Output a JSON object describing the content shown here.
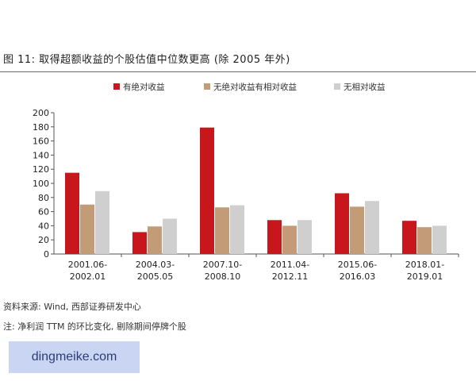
{
  "header": {
    "title": "图 11:  取得超额收益的个股估值中位数更高 (除 2005 年外)"
  },
  "footer": {
    "source": "资料来源: Wind, 西部证券研发中心",
    "note": "注: 净利润 TTM 的环比变化, 剔除期间停牌个股"
  },
  "watermark": {
    "text": "dingmeike.com"
  },
  "chart_data": {
    "type": "bar",
    "title": "",
    "xlabel": "",
    "ylabel": "",
    "ylim": [
      0,
      200
    ],
    "yticks": [
      0,
      20,
      40,
      60,
      80,
      100,
      120,
      140,
      160,
      180,
      200
    ],
    "grid": false,
    "legend_position": "top",
    "categories": [
      [
        "2001.06-",
        "2002.01"
      ],
      [
        "2004.03-",
        "2005.05"
      ],
      [
        "2007.10-",
        "2008.10"
      ],
      [
        "2011.04-",
        "2012.11"
      ],
      [
        "2015.06-",
        "2016.03"
      ],
      [
        "2018.01-",
        "2019.01"
      ]
    ],
    "series": [
      {
        "name": "有绝对收益",
        "color": "#c8161d",
        "values": [
          115,
          31,
          179,
          48,
          86,
          47
        ]
      },
      {
        "name": "无绝对收益有相对收益",
        "color": "#c39b77",
        "values": [
          70,
          39,
          66,
          40,
          67,
          38
        ]
      },
      {
        "name": "无相对收益",
        "color": "#cfcfcf",
        "values": [
          89,
          50,
          69,
          48,
          75,
          40
        ]
      }
    ]
  }
}
